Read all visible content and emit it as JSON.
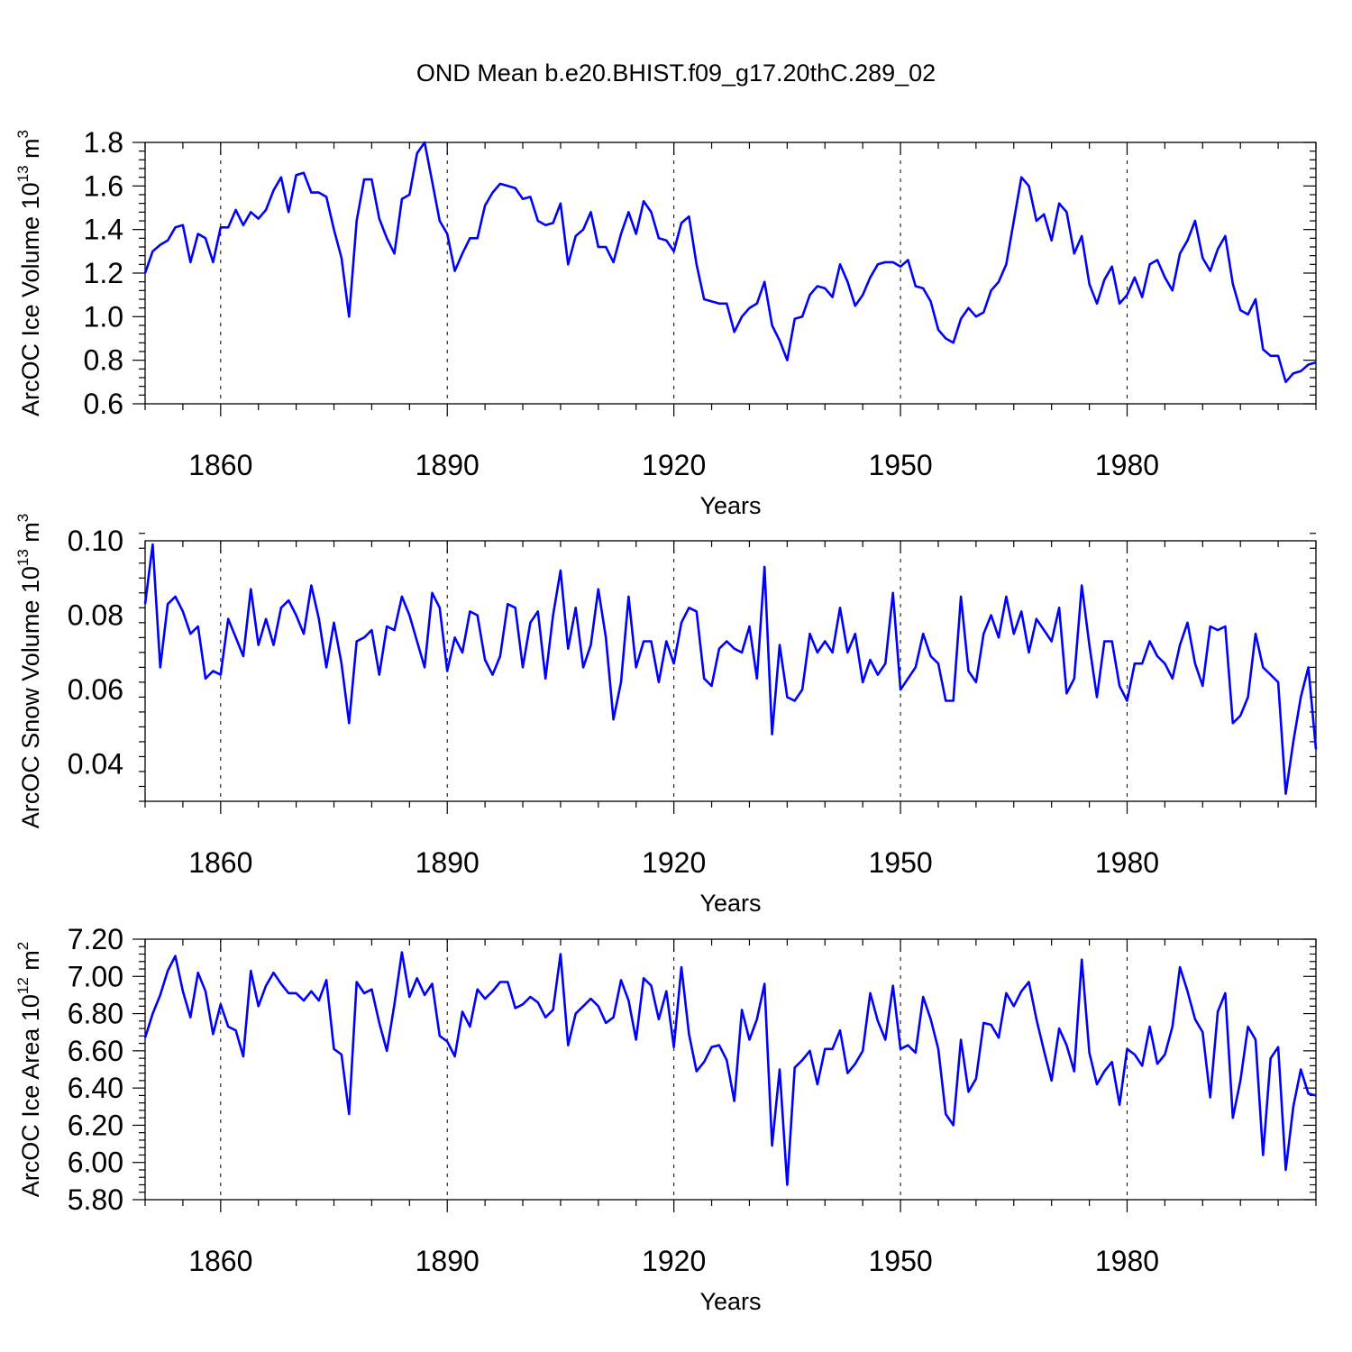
{
  "title": "OND Mean b.e20.BHIST.f09_g17.20thC.289_02",
  "colors": {
    "line": "#0000ff",
    "axis": "#000000"
  },
  "chart_data": [
    {
      "type": "line",
      "ylabel_main": "ArcOC Ice Volume 10",
      "ylabel_sup1": "13",
      "ylabel_mid": " m",
      "ylabel_sup2": "3",
      "xlabel": "Years",
      "xlim": [
        1850,
        2005
      ],
      "ylim": [
        0.6,
        1.8
      ],
      "yticks": [
        0.6,
        0.8,
        1.0,
        1.2,
        1.4,
        1.6,
        1.8
      ],
      "ytick_labels": [
        "0.6",
        "0.8",
        "1.0",
        "1.2",
        "1.4",
        "1.6",
        "1.8"
      ],
      "xticks": [
        1860,
        1890,
        1920,
        1950,
        1980
      ],
      "xtick_labels": [
        "1860",
        "1890",
        "1920",
        "1950",
        "1980"
      ],
      "x_start": 1850,
      "values": [
        1.2,
        1.3,
        1.33,
        1.35,
        1.41,
        1.42,
        1.25,
        1.38,
        1.36,
        1.25,
        1.41,
        1.41,
        1.49,
        1.42,
        1.48,
        1.45,
        1.49,
        1.58,
        1.64,
        1.48,
        1.65,
        1.66,
        1.57,
        1.57,
        1.55,
        1.4,
        1.27,
        1.0,
        1.44,
        1.63,
        1.63,
        1.45,
        1.36,
        1.29,
        1.54,
        1.56,
        1.75,
        1.8,
        1.62,
        1.44,
        1.38,
        1.21,
        1.29,
        1.36,
        1.36,
        1.51,
        1.57,
        1.61,
        1.6,
        1.59,
        1.54,
        1.55,
        1.44,
        1.42,
        1.43,
        1.52,
        1.24,
        1.37,
        1.4,
        1.48,
        1.32,
        1.32,
        1.25,
        1.38,
        1.48,
        1.38,
        1.53,
        1.48,
        1.36,
        1.35,
        1.3,
        1.43,
        1.46,
        1.24,
        1.08,
        1.07,
        1.06,
        1.06,
        0.93,
        1.0,
        1.04,
        1.06,
        1.16,
        0.96,
        0.89,
        0.8,
        0.99,
        1.0,
        1.1,
        1.14,
        1.13,
        1.09,
        1.24,
        1.16,
        1.05,
        1.1,
        1.18,
        1.24,
        1.25,
        1.25,
        1.23,
        1.26,
        1.14,
        1.13,
        1.07,
        0.94,
        0.9,
        0.88,
        0.99,
        1.04,
        1.0,
        1.02,
        1.12,
        1.16,
        1.24,
        1.44,
        1.64,
        1.6,
        1.44,
        1.47,
        1.35,
        1.52,
        1.48,
        1.29,
        1.37,
        1.15,
        1.06,
        1.17,
        1.23,
        1.06,
        1.1,
        1.18,
        1.09,
        1.24,
        1.26,
        1.18,
        1.12,
        1.29,
        1.35,
        1.44,
        1.27,
        1.21,
        1.31,
        1.37,
        1.15,
        1.03,
        1.01,
        1.08,
        0.85,
        0.82,
        0.82,
        0.7,
        0.74,
        0.75,
        0.78,
        0.79
      ]
    },
    {
      "type": "line",
      "ylabel_main": "ArcOC Snow Volume 10",
      "ylabel_sup1": "13",
      "ylabel_mid": " m",
      "ylabel_sup2": "3",
      "xlabel": "Years",
      "xlim": [
        1850,
        2005
      ],
      "ylim": [
        0.03,
        0.1
      ],
      "yticks": [
        0.04,
        0.06,
        0.08,
        0.1
      ],
      "ytick_labels": [
        "0.04",
        "0.06",
        "0.08",
        "0.10"
      ],
      "xticks": [
        1860,
        1890,
        1920,
        1950,
        1980
      ],
      "xtick_labels": [
        "1860",
        "1890",
        "1920",
        "1950",
        "1980"
      ],
      "x_start": 1850,
      "values": [
        0.083,
        0.099,
        0.066,
        0.083,
        0.085,
        0.081,
        0.075,
        0.077,
        0.063,
        0.065,
        0.064,
        0.079,
        0.074,
        0.069,
        0.087,
        0.072,
        0.079,
        0.072,
        0.082,
        0.084,
        0.08,
        0.075,
        0.088,
        0.079,
        0.066,
        0.078,
        0.067,
        0.051,
        0.073,
        0.074,
        0.076,
        0.064,
        0.077,
        0.076,
        0.085,
        0.08,
        0.073,
        0.066,
        0.086,
        0.082,
        0.065,
        0.074,
        0.07,
        0.081,
        0.08,
        0.068,
        0.064,
        0.069,
        0.083,
        0.082,
        0.066,
        0.078,
        0.081,
        0.063,
        0.08,
        0.092,
        0.071,
        0.082,
        0.066,
        0.072,
        0.087,
        0.074,
        0.052,
        0.062,
        0.085,
        0.066,
        0.073,
        0.073,
        0.062,
        0.073,
        0.067,
        0.078,
        0.082,
        0.081,
        0.063,
        0.061,
        0.071,
        0.073,
        0.071,
        0.07,
        0.077,
        0.063,
        0.093,
        0.048,
        0.072,
        0.058,
        0.057,
        0.06,
        0.075,
        0.07,
        0.073,
        0.07,
        0.082,
        0.07,
        0.075,
        0.062,
        0.068,
        0.064,
        0.067,
        0.086,
        0.06,
        0.063,
        0.066,
        0.075,
        0.069,
        0.067,
        0.057,
        0.057,
        0.085,
        0.065,
        0.062,
        0.075,
        0.08,
        0.074,
        0.085,
        0.075,
        0.081,
        0.07,
        0.079,
        0.076,
        0.073,
        0.082,
        0.059,
        0.063,
        0.088,
        0.072,
        0.058,
        0.073,
        0.073,
        0.061,
        0.057,
        0.067,
        0.067,
        0.073,
        0.069,
        0.067,
        0.063,
        0.072,
        0.078,
        0.067,
        0.061,
        0.077,
        0.076,
        0.077,
        0.051,
        0.053,
        0.058,
        0.075,
        0.066,
        0.064,
        0.062,
        0.032,
        0.046,
        0.058,
        0.066,
        0.044
      ]
    },
    {
      "type": "line",
      "ylabel_main": "ArcOC Ice Area 10",
      "ylabel_sup1": "12",
      "ylabel_mid": " m",
      "ylabel_sup2": "2",
      "xlabel": "Years",
      "xlim": [
        1850,
        2005
      ],
      "ylim": [
        5.8,
        7.2
      ],
      "yticks": [
        5.8,
        6.0,
        6.2,
        6.4,
        6.6,
        6.8,
        7.0,
        7.2
      ],
      "ytick_labels": [
        "5.80",
        "6.00",
        "6.20",
        "6.40",
        "6.60",
        "6.80",
        "7.00",
        "7.20"
      ],
      "xticks": [
        1860,
        1890,
        1920,
        1950,
        1980
      ],
      "xtick_labels": [
        "1860",
        "1890",
        "1920",
        "1950",
        "1980"
      ],
      "x_start": 1850,
      "values": [
        6.67,
        6.8,
        6.9,
        7.03,
        7.11,
        6.92,
        6.78,
        7.02,
        6.92,
        6.69,
        6.85,
        6.73,
        6.71,
        6.57,
        7.03,
        6.84,
        6.95,
        7.02,
        6.96,
        6.91,
        6.91,
        6.87,
        6.92,
        6.87,
        6.98,
        6.61,
        6.58,
        6.26,
        6.97,
        6.91,
        6.93,
        6.75,
        6.6,
        6.85,
        7.13,
        6.89,
        6.99,
        6.9,
        6.96,
        6.68,
        6.65,
        6.57,
        6.81,
        6.73,
        6.93,
        6.88,
        6.92,
        6.97,
        6.97,
        6.83,
        6.85,
        6.89,
        6.86,
        6.78,
        6.82,
        7.12,
        6.63,
        6.8,
        6.84,
        6.88,
        6.84,
        6.75,
        6.78,
        6.98,
        6.87,
        6.66,
        6.99,
        6.95,
        6.77,
        6.92,
        6.62,
        7.05,
        6.69,
        6.49,
        6.54,
        6.62,
        6.63,
        6.55,
        6.33,
        6.82,
        6.66,
        6.77,
        6.96,
        6.09,
        6.5,
        5.88,
        6.51,
        6.55,
        6.6,
        6.42,
        6.61,
        6.61,
        6.71,
        6.48,
        6.53,
        6.6,
        6.91,
        6.76,
        6.66,
        6.95,
        6.61,
        6.63,
        6.59,
        6.89,
        6.77,
        6.61,
        6.26,
        6.2,
        6.66,
        6.38,
        6.45,
        6.75,
        6.74,
        6.67,
        6.91,
        6.84,
        6.92,
        6.97,
        6.77,
        6.6,
        6.44,
        6.72,
        6.63,
        6.49,
        7.09,
        6.59,
        6.42,
        6.49,
        6.54,
        6.31,
        6.61,
        6.58,
        6.52,
        6.73,
        6.53,
        6.58,
        6.73,
        7.05,
        6.92,
        6.77,
        6.7,
        6.35,
        6.81,
        6.91,
        6.24,
        6.44,
        6.73,
        6.66,
        6.04,
        6.56,
        6.62,
        5.96,
        6.3,
        6.5,
        6.37,
        6.36
      ]
    }
  ]
}
